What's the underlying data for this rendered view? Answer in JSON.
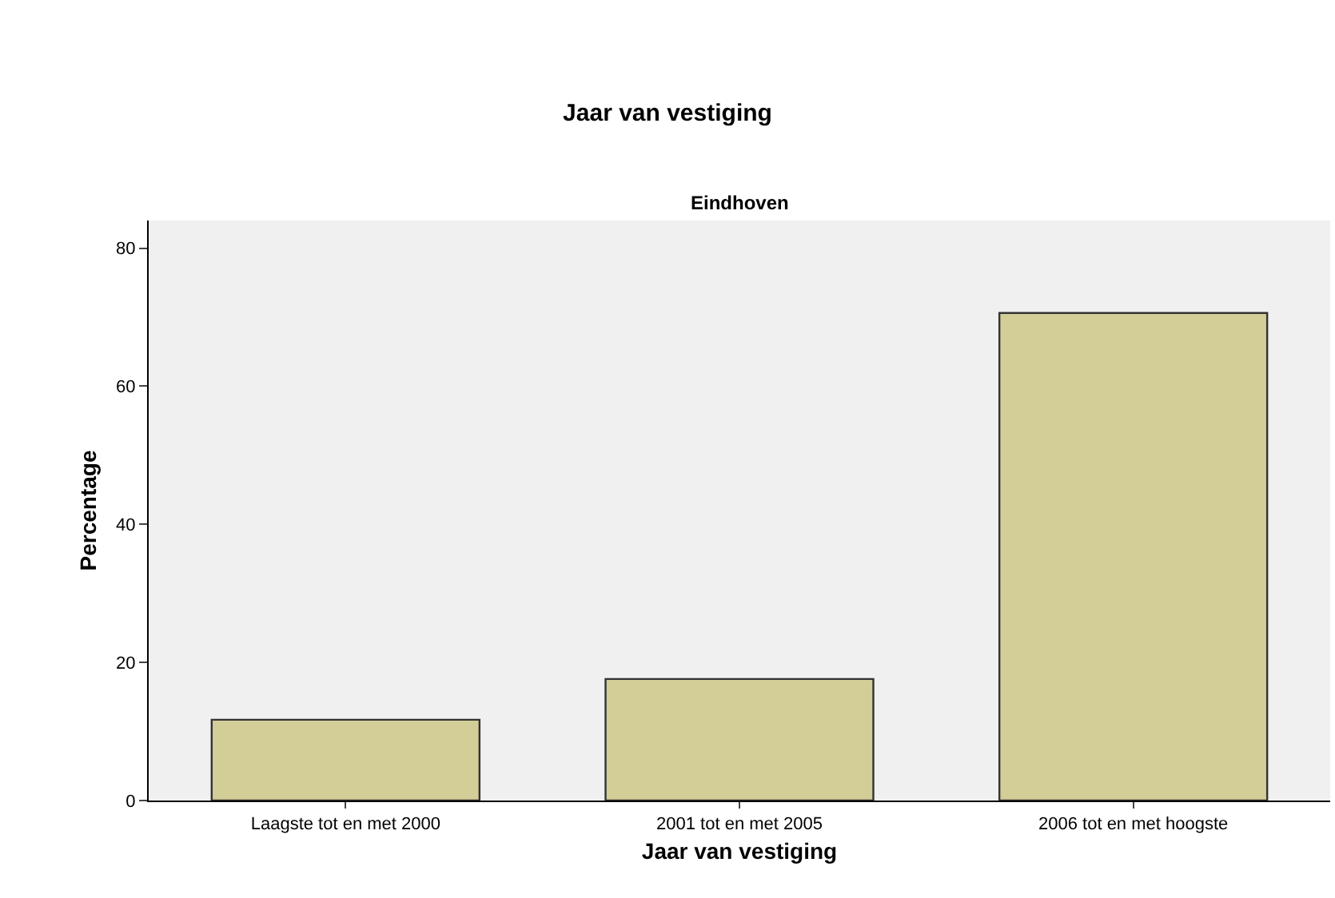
{
  "chart_data": {
    "type": "bar",
    "title": "Jaar van vestiging",
    "subtitle": "Eindhoven",
    "xlabel": "Jaar van vestiging",
    "ylabel": "Percentage",
    "categories": [
      "Laagste tot en met 2000",
      "2001 tot en met 2005",
      "2006 tot en met hoogste"
    ],
    "values": [
      11.7,
      17.6,
      70.6
    ],
    "color": "#d3ce97",
    "ylim": [
      0,
      84
    ],
    "yticks": [
      0,
      20,
      40,
      60,
      80
    ],
    "grid": false,
    "legend": false
  }
}
